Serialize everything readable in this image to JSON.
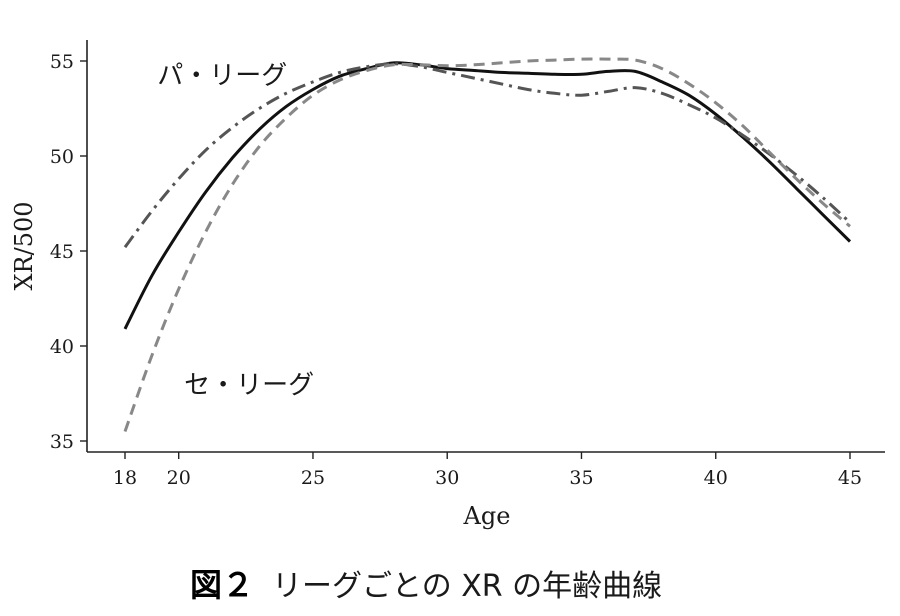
{
  "chart_data": {
    "type": "line",
    "xlabel": "Age",
    "ylabel": "XR/500",
    "xlim": [
      18,
      45
    ],
    "ylim": [
      35,
      55
    ],
    "xticks": [
      18,
      20,
      25,
      30,
      35,
      40,
      45
    ],
    "yticks": [
      35,
      40,
      45,
      50,
      55
    ],
    "grid": false,
    "legend": "none",
    "series": [
      {
        "style": "solid",
        "color": "#111111",
        "x": [
          18,
          19,
          20,
          21,
          22,
          23,
          24,
          25,
          26,
          27,
          28,
          29,
          30,
          31,
          32,
          33,
          34,
          35,
          36,
          37,
          38,
          39,
          40,
          41,
          42,
          43,
          44,
          45
        ],
        "y": [
          40.9,
          43.7,
          46.0,
          48.1,
          49.9,
          51.4,
          52.6,
          53.5,
          54.2,
          54.6,
          54.9,
          54.8,
          54.6,
          54.5,
          54.4,
          54.35,
          54.3,
          54.3,
          54.45,
          54.45,
          53.9,
          53.2,
          52.2,
          51.0,
          49.7,
          48.3,
          46.9,
          45.5
        ]
      },
      {
        "style": "dashdot",
        "color": "#555555",
        "x": [
          18,
          19,
          20,
          21,
          22,
          23,
          24,
          25,
          26,
          27,
          28,
          29,
          30,
          31,
          32,
          33,
          34,
          35,
          36,
          37,
          38,
          39,
          40,
          41,
          42,
          43,
          44,
          45
        ],
        "y": [
          45.2,
          47.1,
          48.8,
          50.3,
          51.5,
          52.5,
          53.3,
          53.9,
          54.4,
          54.7,
          54.85,
          54.7,
          54.4,
          54.1,
          53.8,
          53.5,
          53.3,
          53.2,
          53.4,
          53.6,
          53.3,
          52.7,
          52.0,
          51.1,
          50.1,
          49.0,
          47.8,
          46.5
        ]
      },
      {
        "style": "dashed",
        "color": "#888888",
        "x": [
          18,
          19,
          20,
          21,
          22,
          23,
          24,
          25,
          26,
          27,
          28,
          29,
          30,
          31,
          32,
          33,
          34,
          35,
          36,
          37,
          38,
          39,
          40,
          41,
          42,
          43,
          44,
          45
        ],
        "y": [
          35.5,
          39.5,
          43.0,
          46.0,
          48.5,
          50.5,
          52.0,
          53.2,
          54.0,
          54.5,
          54.8,
          54.8,
          54.75,
          54.8,
          54.9,
          55.0,
          55.05,
          55.1,
          55.1,
          55.05,
          54.6,
          53.8,
          52.8,
          51.6,
          50.2,
          48.8,
          47.5,
          46.3
        ]
      }
    ],
    "annotations": [
      {
        "text": "パ・リーグ",
        "x": 19.2,
        "y": 53.8
      },
      {
        "text": "セ・リーグ",
        "x": 20.2,
        "y": 37.5
      }
    ]
  },
  "caption": {
    "label": "図２",
    "text": "リーグごとの XR の年齢曲線"
  }
}
